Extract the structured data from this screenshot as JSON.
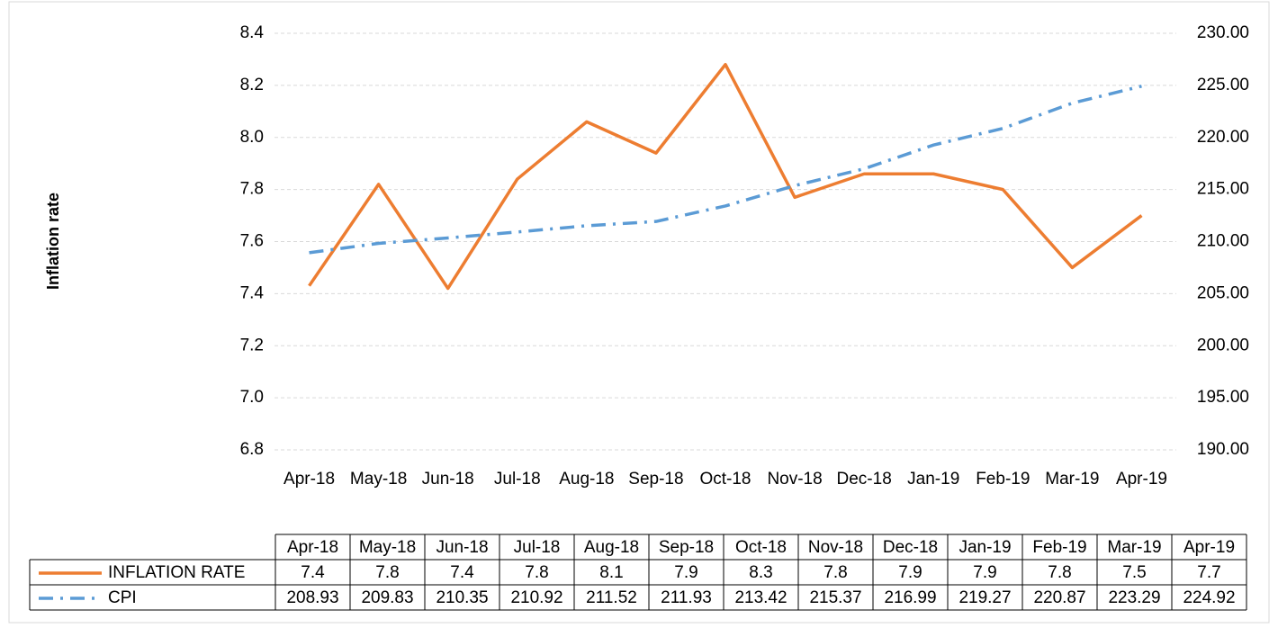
{
  "chart_data": {
    "type": "line",
    "y_label": "Inflation rate",
    "categories": [
      "Apr-18",
      "May-18",
      "Jun-18",
      "Jul-18",
      "Aug-18",
      "Sep-18",
      "Oct-18",
      "Nov-18",
      "Dec-18",
      "Jan-19",
      "Feb-19",
      "Mar-19",
      "Apr-19"
    ],
    "series": [
      {
        "name": "INFLATION RATE",
        "color": "#ed7d31",
        "axis": "y",
        "values": [
          7.43,
          7.82,
          7.42,
          7.84,
          8.06,
          7.94,
          8.28,
          7.77,
          7.86,
          7.86,
          7.8,
          7.5,
          7.7
        ],
        "value_labels": [
          "7.4",
          "7.8",
          "7.4",
          "7.8",
          "8.1",
          "7.9",
          "8.3",
          "7.8",
          "7.9",
          "7.9",
          "7.8",
          "7.5",
          "7.7"
        ]
      },
      {
        "name": "CPI",
        "color": "#5b9bd5",
        "axis": "y2",
        "dash": "16,8,3,8",
        "values": [
          208.93,
          209.83,
          210.35,
          210.92,
          211.52,
          211.93,
          213.42,
          215.37,
          216.99,
          219.27,
          220.87,
          223.29,
          224.92
        ]
      }
    ],
    "ylim": [
      6.8,
      8.4
    ],
    "yticks": [
      6.8,
      {
        "value": 7.0,
        "label": "7.0"
      },
      7.2,
      7.4,
      7.6,
      7.8,
      {
        "value": 8.0,
        "label": "8.0"
      },
      8.2,
      8.4
    ],
    "y2lim": [
      190,
      230
    ],
    "y2ticks": [
      {
        "value": 190,
        "label": "190.00"
      },
      {
        "value": 195,
        "label": "195.00"
      },
      {
        "value": 200,
        "label": "200.00"
      },
      {
        "value": 205,
        "label": "205.00"
      },
      {
        "value": 210,
        "label": "210.00"
      },
      {
        "value": 215,
        "label": "215.00"
      },
      {
        "value": 220,
        "label": "220.00"
      },
      {
        "value": 225,
        "label": "225.00"
      },
      {
        "value": 230,
        "label": "230.00"
      }
    ],
    "grid": true,
    "data_table": true
  }
}
